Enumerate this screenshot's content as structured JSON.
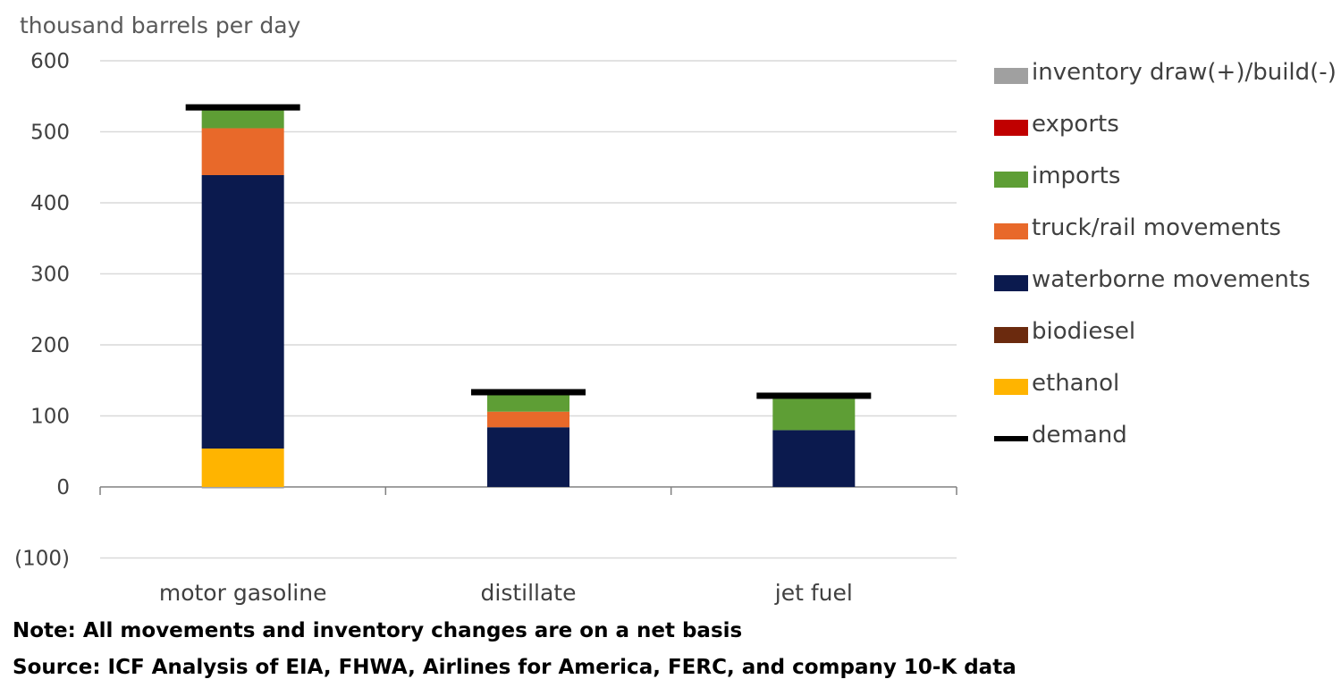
{
  "chart_data": {
    "type": "bar",
    "stacked": true,
    "ylabel": "thousand barrels per day",
    "ylim": [
      -100,
      600
    ],
    "yticks": [
      -100,
      0,
      100,
      200,
      300,
      400,
      500,
      600
    ],
    "ytick_labels": [
      "(100)",
      "0",
      "100",
      "200",
      "300",
      "400",
      "500",
      "600"
    ],
    "categories": [
      "motor gasoline",
      "distillate",
      "jet fuel"
    ],
    "series": [
      {
        "name": "ethanol",
        "color": "#FFB400",
        "values": [
          54,
          0,
          0
        ]
      },
      {
        "name": "biodiesel",
        "color": "#6B2A0E",
        "values": [
          0,
          0,
          0
        ]
      },
      {
        "name": "waterborne movements",
        "color": "#0B1A4E",
        "values": [
          385,
          84,
          80
        ]
      },
      {
        "name": "truck/rail movements",
        "color": "#E8692A",
        "values": [
          66,
          22,
          0
        ]
      },
      {
        "name": "imports",
        "color": "#5E9E35",
        "values": [
          27,
          27,
          44
        ]
      },
      {
        "name": "exports",
        "color": "#C00000",
        "values": [
          0,
          0,
          0
        ]
      },
      {
        "name": "inventory draw(+)/build(-)",
        "color": "#A0A0A0",
        "values": [
          -2,
          0,
          0
        ]
      }
    ],
    "demand": {
      "name": "demand",
      "color": "#000000",
      "values": [
        535,
        134,
        129
      ]
    },
    "legend_order": [
      "inventory draw(+)/build(-)",
      "exports",
      "imports",
      "truck/rail movements",
      "waterborne movements",
      "biodiesel",
      "ethanol",
      "demand"
    ],
    "grid": true,
    "legend_position": "right"
  },
  "notes": {
    "note": "Note: All movements and inventory changes are on a net basis",
    "source": "Source: ICF Analysis of EIA, FHWA, Airlines for America, FERC, and company 10-K data"
  }
}
